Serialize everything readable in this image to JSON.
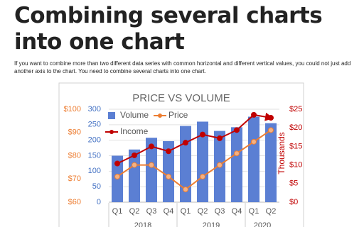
{
  "page": {
    "title": "Combining several charts into one chart",
    "intro": "If you want to combine more than two different data series with common horizontal and different vertical values, you could not just add another axis to the chart. You need to combine several charts into one chart."
  },
  "chart_data": {
    "type": "combo",
    "title": "PRICE VS VOLUME",
    "categories": [
      "Q1",
      "Q2",
      "Q3",
      "Q4",
      "Q1",
      "Q2",
      "Q3",
      "Q4",
      "Q1",
      "Q2"
    ],
    "x_groups": [
      {
        "label": "2018",
        "count": 4
      },
      {
        "label": "2019",
        "count": 4
      },
      {
        "label": "2020",
        "count": 2
      }
    ],
    "series": [
      {
        "name": "Volume",
        "type": "bar",
        "color": "#5b7fd3",
        "values": [
          150,
          170,
          208,
          197,
          246,
          260,
          230,
          242,
          276,
          255
        ]
      },
      {
        "name": "Price",
        "type": "line",
        "axis": "y3",
        "color": "#ed7d31",
        "values": [
          71,
          76,
          76,
          71,
          65.5,
          71,
          76,
          81,
          86,
          91
        ]
      },
      {
        "name": "Income",
        "type": "line",
        "axis": "y2",
        "color": "#c00000",
        "values": [
          10.4,
          12.6,
          15,
          13.7,
          16,
          18.2,
          17.2,
          19.4,
          23.5,
          22.7
        ]
      }
    ],
    "ylim": [
      0,
      300
    ],
    "yticks": [
      0,
      50,
      100,
      150,
      200,
      250,
      300
    ],
    "ytick_color": "#4472c4",
    "y2lim": [
      0,
      25
    ],
    "y2label": "Thousands",
    "y2tick_color": "#c00000",
    "y2ticks": [
      {
        "value": 0,
        "label": "$0"
      },
      {
        "value": 5,
        "label": "$5"
      },
      {
        "value": 10,
        "label": "$10"
      },
      {
        "value": 15,
        "label": "$15"
      },
      {
        "value": 20,
        "label": "$20"
      },
      {
        "value": 25,
        "label": "$25"
      }
    ],
    "y3lim": [
      60,
      100
    ],
    "y3tick_color": "#ed7d31",
    "y3ticks": [
      {
        "value": 60,
        "label": "$60"
      },
      {
        "value": 70,
        "label": "$70"
      },
      {
        "value": 80,
        "label": "$80"
      },
      {
        "value": 90,
        "label": "$90"
      },
      {
        "value": 100,
        "label": "$100"
      }
    ],
    "grid": true
  }
}
